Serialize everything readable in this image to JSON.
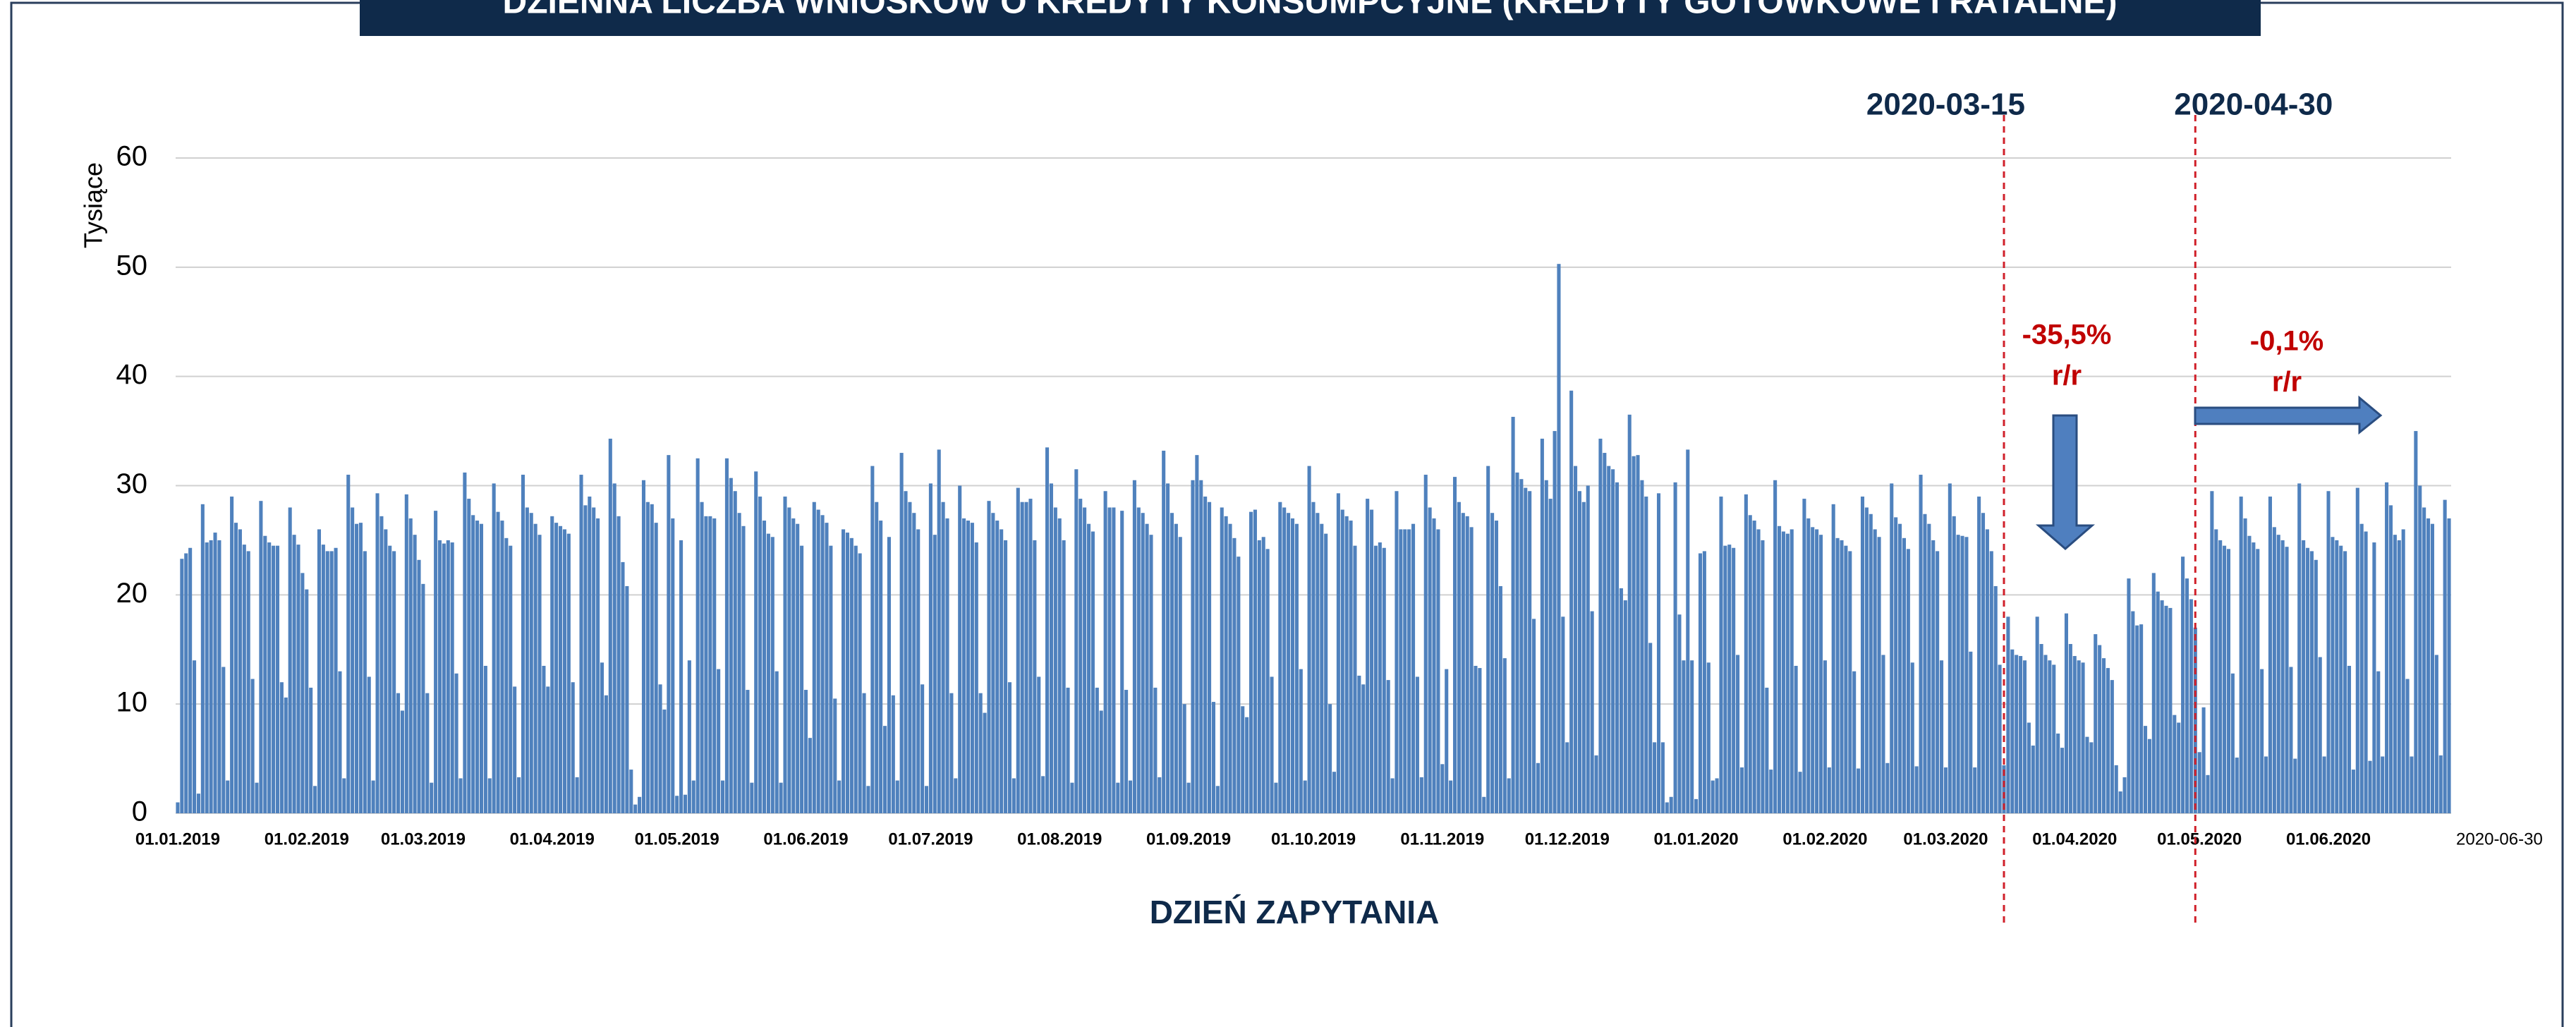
{
  "chart_data": {
    "type": "bar",
    "title": "DZIENNA LICZBA WNIOSKÓW O KREDYTY KONSUMPCYJNE (KREDYTY GOTÓWKOWE I RATALNE)",
    "y_label": "Tysiące",
    "x_label": "DZIEŃ ZAPYTANIA",
    "color": "#4f81bd",
    "ylim": [
      0,
      60
    ],
    "yticks": [
      0,
      10,
      20,
      30,
      40,
      50,
      60
    ],
    "grid": true,
    "markers": [
      "2020-03-15",
      "2020-04-30"
    ],
    "annotations": [
      {
        "lines": [
          "-35,5%",
          "r/r"
        ]
      },
      {
        "lines": [
          "-0,1%",
          "r/r"
        ]
      }
    ],
    "categories": [
      "01.01.2019",
      null,
      null,
      null,
      null,
      null,
      null,
      null,
      null,
      null,
      null,
      null,
      null,
      null,
      null,
      null,
      null,
      null,
      null,
      null,
      null,
      null,
      null,
      null,
      null,
      null,
      null,
      null,
      null,
      null,
      null,
      "01.02.2019",
      null,
      null,
      null,
      null,
      null,
      null,
      null,
      null,
      null,
      null,
      null,
      null,
      null,
      null,
      null,
      null,
      null,
      null,
      null,
      null,
      null,
      null,
      null,
      null,
      null,
      null,
      null,
      "01.03.2019",
      null,
      null,
      null,
      null,
      null,
      null,
      null,
      null,
      null,
      null,
      null,
      null,
      null,
      null,
      null,
      null,
      null,
      null,
      null,
      null,
      null,
      null,
      null,
      null,
      null,
      null,
      null,
      null,
      null,
      null,
      "01.04.2019",
      null,
      null,
      null,
      null,
      null,
      null,
      null,
      null,
      null,
      null,
      null,
      null,
      null,
      null,
      null,
      null,
      null,
      null,
      null,
      null,
      null,
      null,
      null,
      null,
      null,
      null,
      null,
      null,
      null,
      "01.05.2019",
      null,
      null,
      null,
      null,
      null,
      null,
      null,
      null,
      null,
      null,
      null,
      null,
      null,
      null,
      null,
      null,
      null,
      null,
      null,
      null,
      null,
      null,
      null,
      null,
      null,
      null,
      null,
      null,
      null,
      null,
      "01.06.2019",
      null,
      null,
      null,
      null,
      null,
      null,
      null,
      null,
      null,
      null,
      null,
      null,
      null,
      null,
      null,
      null,
      null,
      null,
      null,
      null,
      null,
      null,
      null,
      null,
      null,
      null,
      null,
      null,
      null,
      "01.07.2019",
      null,
      null,
      null,
      null,
      null,
      null,
      null,
      null,
      null,
      null,
      null,
      null,
      null,
      null,
      null,
      null,
      null,
      null,
      null,
      null,
      null,
      null,
      null,
      null,
      null,
      null,
      null,
      null,
      null,
      null,
      "01.08.2019",
      null,
      null,
      null,
      null,
      null,
      null,
      null,
      null,
      null,
      null,
      null,
      null,
      null,
      null,
      null,
      null,
      null,
      null,
      null,
      null,
      null,
      null,
      null,
      null,
      null,
      null,
      null,
      null,
      null,
      null,
      "01.09.2019",
      null,
      null,
      null,
      null,
      null,
      null,
      null,
      null,
      null,
      null,
      null,
      null,
      null,
      null,
      null,
      null,
      null,
      null,
      null,
      null,
      null,
      null,
      null,
      null,
      null,
      null,
      null,
      null,
      null,
      "01.10.2019",
      null,
      null,
      null,
      null,
      null,
      null,
      null,
      null,
      null,
      null,
      null,
      null,
      null,
      null,
      null,
      null,
      null,
      null,
      null,
      null,
      null,
      null,
      null,
      null,
      null,
      null,
      null,
      null,
      null,
      null,
      "01.11.2019",
      null,
      null,
      null,
      null,
      null,
      null,
      null,
      null,
      null,
      null,
      null,
      null,
      null,
      null,
      null,
      null,
      null,
      null,
      null,
      null,
      null,
      null,
      null,
      null,
      null,
      null,
      null,
      null,
      null,
      "01.12.2019",
      null,
      null,
      null,
      null,
      null,
      null,
      null,
      null,
      null,
      null,
      null,
      null,
      null,
      null,
      null,
      null,
      null,
      null,
      null,
      null,
      null,
      null,
      null,
      null,
      null,
      null,
      null,
      null,
      null,
      null,
      "01.01.2020",
      null,
      null,
      null,
      null,
      null,
      null,
      null,
      null,
      null,
      null,
      null,
      null,
      null,
      null,
      null,
      null,
      null,
      null,
      null,
      null,
      null,
      null,
      null,
      null,
      null,
      null,
      null,
      null,
      null,
      null,
      "01.02.2020",
      null,
      null,
      null,
      null,
      null,
      null,
      null,
      null,
      null,
      null,
      null,
      null,
      null,
      null,
      null,
      null,
      null,
      null,
      null,
      null,
      null,
      null,
      null,
      null,
      null,
      null,
      null,
      null,
      "01.03.2020",
      null,
      null,
      null,
      null,
      null,
      null,
      null,
      null,
      null,
      null,
      null,
      null,
      null,
      null,
      null,
      null,
      null,
      null,
      null,
      null,
      null,
      null,
      null,
      null,
      null,
      null,
      null,
      null,
      null,
      null,
      "01.04.2020",
      null,
      null,
      null,
      null,
      null,
      null,
      null,
      null,
      null,
      null,
      null,
      null,
      null,
      null,
      null,
      null,
      null,
      null,
      null,
      null,
      null,
      null,
      null,
      null,
      null,
      null,
      null,
      null,
      null,
      "01.05.2020",
      null,
      null,
      null,
      null,
      null,
      null,
      null,
      null,
      null,
      null,
      null,
      null,
      null,
      null,
      null,
      null,
      null,
      null,
      null,
      null,
      null,
      null,
      null,
      null,
      null,
      null,
      null,
      null,
      null,
      null,
      "01.06.2020",
      null,
      null,
      null,
      null,
      null,
      null,
      null,
      null,
      null,
      null,
      null,
      null,
      null,
      null,
      null,
      null,
      null,
      null,
      null,
      null,
      null,
      null,
      null,
      null,
      null,
      null,
      null,
      null,
      "2020-06-30"
    ],
    "values": [
      1,
      23.3,
      23.8,
      24.3,
      14,
      1.8,
      28.3,
      24.8,
      25,
      25.7,
      25,
      13.4,
      3,
      29,
      26.6,
      26,
      24.6,
      24,
      12.3,
      2.8,
      28.6,
      25.4,
      24.8,
      24.5,
      24.5,
      12,
      10.6,
      28,
      25.5,
      24.6,
      22,
      20.5,
      11.5,
      2.5,
      26,
      24.6,
      24,
      24,
      24.3,
      13,
      3.2,
      31,
      28,
      26.5,
      26.6,
      24,
      12.5,
      3,
      29.3,
      27.2,
      26,
      24.5,
      24,
      11,
      9.4,
      29.2,
      27,
      25.5,
      23.2,
      21,
      11,
      2.8,
      27.7,
      25,
      24.7,
      25,
      24.8,
      12.8,
      3.2,
      31.2,
      28.8,
      27.3,
      26.8,
      26.5,
      13.5,
      3.2,
      30.2,
      27.6,
      26.8,
      25.2,
      24.5,
      11.6,
      3.3,
      31,
      28,
      27.5,
      26.5,
      25.5,
      13.5,
      11.6,
      27.2,
      26.6,
      26.3,
      26,
      25.6,
      12,
      3.3,
      31,
      28.2,
      29,
      28,
      27,
      13.8,
      10.8,
      34.3,
      30.2,
      27.2,
      23,
      20.8,
      4,
      0.8,
      1.5,
      30.5,
      28.5,
      28.3,
      26.6,
      11.8,
      9.5,
      32.8,
      27,
      1.6,
      25,
      1.7,
      14,
      3,
      32.5,
      28.5,
      27.2,
      27.2,
      27,
      13.2,
      3,
      32.5,
      30.7,
      29.5,
      27.5,
      26.3,
      11.3,
      2.8,
      31.3,
      29,
      26.8,
      25.6,
      25.3,
      13,
      2.8,
      29,
      28,
      27,
      26.5,
      24.5,
      11.3,
      6.9,
      28.5,
      27.8,
      27.3,
      26.6,
      24.5,
      10.5,
      3,
      26,
      25.7,
      25.2,
      24.5,
      23.8,
      11,
      2.5,
      31.8,
      28.5,
      26.8,
      8,
      25.3,
      10.8,
      3,
      33,
      29.5,
      28.5,
      27.5,
      26,
      11.8,
      2.5,
      30.2,
      25.5,
      33.3,
      28.5,
      27,
      11,
      3.2,
      30,
      27,
      26.8,
      26.6,
      24.8,
      11,
      9.2,
      28.6,
      27.5,
      26.8,
      26,
      25,
      12,
      3.2,
      29.8,
      28.5,
      28.5,
      28.8,
      25,
      12.5,
      3.4,
      33.5,
      30.2,
      28,
      27,
      25,
      11.5,
      2.8,
      31.5,
      28.8,
      28,
      26.5,
      25.8,
      11.5,
      9.4,
      29.5,
      28,
      28,
      2.8,
      27.7,
      11.3,
      3,
      30.5,
      28,
      27.5,
      26.5,
      25.5,
      11.5,
      3.3,
      33.2,
      30.2,
      27.5,
      26.5,
      25.3,
      10,
      2.8,
      30.5,
      32.8,
      30.5,
      29,
      28.5,
      10.2,
      2.5,
      28,
      27.2,
      26.5,
      25.2,
      23.5,
      9.8,
      8.8,
      27.6,
      27.8,
      25,
      25.3,
      24.2,
      12.5,
      2.8,
      28.5,
      28,
      27.5,
      27,
      26.5,
      13.2,
      3,
      31.8,
      28.5,
      27.5,
      26.5,
      25.6,
      10,
      3.8,
      29.3,
      27.8,
      27.2,
      26.8,
      24.5,
      12.6,
      11.8,
      28.8,
      27.8,
      24.5,
      24.8,
      24.3,
      12.2,
      3.2,
      29.5,
      26,
      26,
      26,
      26.5,
      12.5,
      3.3,
      31,
      28,
      27,
      26,
      4.5,
      13.2,
      3,
      30.8,
      28.5,
      27.5,
      27.2,
      26.2,
      13.5,
      13.3,
      1.5,
      31.8,
      27.5,
      26.8,
      20.8,
      14.2,
      3.2,
      36.3,
      31.2,
      30.6,
      29.8,
      29.5,
      17.8,
      4.6,
      34.3,
      30.5,
      28.8,
      35,
      50.3,
      18,
      6.5,
      38.7,
      31.8,
      29.5,
      28.5,
      30,
      18.5,
      5.3,
      34.3,
      33,
      31.8,
      31.5,
      30.3,
      20.6,
      19.5,
      36.5,
      32.7,
      32.8,
      30.5,
      29,
      15.6,
      6.5,
      29.3,
      6.5,
      1,
      1.5,
      30.3,
      18.2,
      14,
      33.3,
      14,
      1.3,
      23.8,
      24,
      13.8,
      3,
      3.2,
      29,
      24.5,
      24.6,
      24.3,
      14.5,
      4.2,
      29.2,
      27.3,
      26.8,
      26,
      25,
      11.5,
      4,
      30.5,
      26.3,
      25.8,
      25.6,
      26,
      13.5,
      3.8,
      28.8,
      27,
      26.2,
      26,
      25.5,
      14,
      4.2,
      28.3,
      25.2,
      25,
      24.5,
      24,
      13,
      4.1,
      29,
      28,
      27.4,
      26,
      25.3,
      14.5,
      4.6,
      30.2,
      27.1,
      26.5,
      25.2,
      24.2,
      13.8,
      4.3,
      31,
      27.4,
      26.5,
      25,
      24,
      14,
      4.2,
      30.2,
      27.2,
      25.5,
      25.4,
      25.3,
      14.8,
      4.2,
      29,
      27.5,
      26,
      24,
      20.8,
      13.6,
      4.4,
      18,
      15,
      14.5,
      14.4,
      14,
      8.3,
      6.2,
      18,
      15.5,
      14.5,
      14,
      13.6,
      7.3,
      6,
      18.3,
      15.5,
      14.4,
      14,
      13.8,
      7,
      6.5,
      16.4,
      15.4,
      14.2,
      13.3,
      12.2,
      4.4,
      2,
      3.3,
      21.5,
      18.5,
      17.2,
      17.3,
      8,
      6.8,
      22,
      20.3,
      19.5,
      19,
      18.8,
      9,
      8.3,
      23.5,
      21.5,
      19.6,
      17,
      5.6,
      9.7,
      3.5,
      29.5,
      26,
      25,
      24.5,
      24.2,
      12.8,
      5.1,
      29,
      27,
      25.4,
      24.8,
      24.2,
      13.2,
      5.2,
      29,
      26.2,
      25.5,
      25,
      24.4,
      13.4,
      5,
      30.2,
      25,
      24.3,
      24,
      23.2,
      14.3,
      5.2,
      29.5,
      25.3,
      25,
      24.5,
      24,
      13.5,
      4,
      29.8,
      26.5,
      25.8,
      4.8,
      24.8,
      13,
      5.2,
      30.3,
      28.2,
      25.5,
      25,
      26,
      12.3,
      5.2,
      35,
      30,
      28,
      27,
      26.5,
      14.5,
      5.3,
      28.7,
      27
    ]
  }
}
